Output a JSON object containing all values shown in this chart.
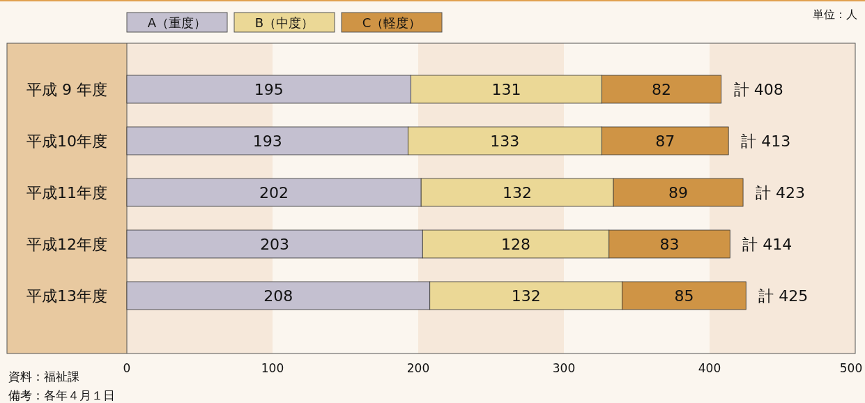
{
  "chart_data": {
    "type": "bar",
    "orientation": "horizontal",
    "stacked": true,
    "categories": [
      "平成 9 年度",
      "平成10年度",
      "平成11年度",
      "平成12年度",
      "平成13年度"
    ],
    "series": [
      {
        "name": "A（重度）",
        "color": "#c4c0d0",
        "values": [
          195,
          193,
          202,
          203,
          208
        ]
      },
      {
        "name": "B（中度）",
        "color": "#ebd896",
        "values": [
          131,
          133,
          132,
          128,
          132
        ]
      },
      {
        "name": "C（軽度）",
        "color": "#cf9445",
        "values": [
          82,
          87,
          89,
          83,
          85
        ]
      }
    ],
    "totals": [
      "計 408",
      "計 413",
      "計 423",
      "計 414",
      "計 425"
    ],
    "data_labels": true,
    "xlim": [
      0,
      500
    ],
    "xticks": [
      0,
      100,
      200,
      300,
      400,
      500
    ],
    "bands": [
      {
        "axis": "x",
        "from": 0,
        "to": 100,
        "color": "#f6e8da"
      },
      {
        "axis": "x",
        "from": 200,
        "to": 300,
        "color": "#f6e8da"
      },
      {
        "axis": "x",
        "from": 400,
        "to": 500,
        "color": "#f6e8da"
      }
    ],
    "legend": "top left",
    "annotations": [
      "単位：人",
      "資料：福祉課",
      "備考：各年４月１日"
    ]
  }
}
